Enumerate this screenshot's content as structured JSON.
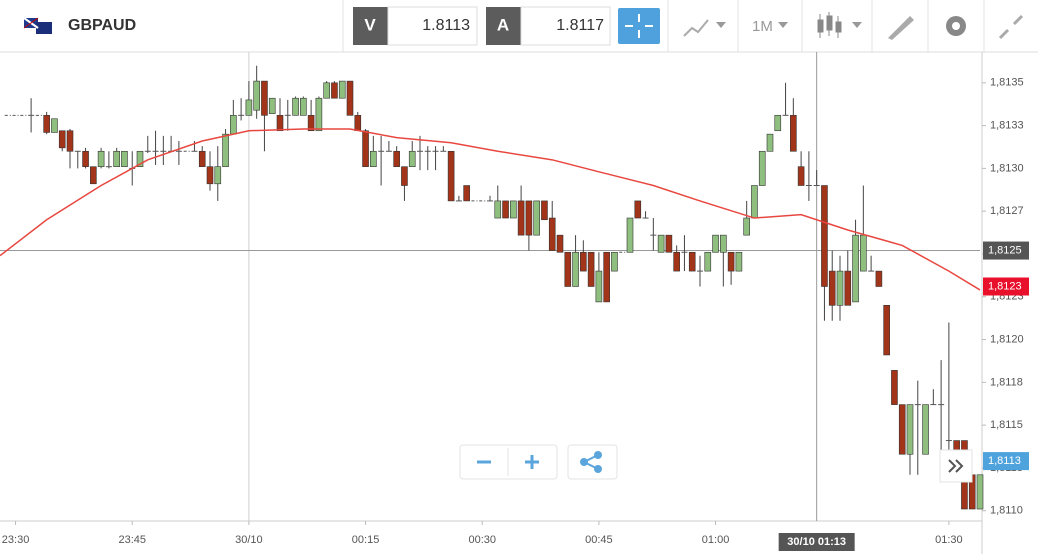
{
  "toolbar": {
    "symbol": "GBPAUD",
    "bid_label": "V",
    "bid": 1.8113,
    "ask_label": "A",
    "ask": 1.8117,
    "timeframe": "1M"
  },
  "chart_data": {
    "type": "candlestick",
    "xlim": [
      "23:28",
      "01:34"
    ],
    "xticks": [
      "23:30",
      "23:45",
      {
        "value": "00:00",
        "label": "30/10"
      },
      "00:15",
      "00:30",
      "00:45",
      "01:00",
      "01:30"
    ],
    "ylim": [
      1.81094,
      1.81368
    ],
    "yticks": [
      {
        "value": 1.8135,
        "label": "1,8135"
      },
      {
        "value": 1.81325,
        "label": "1,8133"
      },
      {
        "value": 1.813,
        "label": "1,8130"
      },
      {
        "value": 1.81275,
        "label": "1,8127"
      },
      {
        "value": 1.8125,
        "label": "1,8125"
      },
      {
        "value": 1.81225,
        "label": "1,8123"
      },
      {
        "value": 1.812,
        "label": "1,8120"
      },
      {
        "value": 1.81175,
        "label": "1,8118"
      },
      {
        "value": 1.8115,
        "label": "1,8115"
      },
      {
        "value": 1.81125,
        "label": "1,8113"
      },
      {
        "value": 1.811,
        "label": "1,8110"
      }
    ],
    "up_color": "#8fbf7f",
    "down_color": "#a23419",
    "candles": [
      [
        "23:29",
        1.81331,
        1.81331,
        1.81331,
        1.81331
      ],
      [
        "23:30",
        1.81331,
        1.81331,
        1.81331,
        1.81331
      ],
      [
        "23:31",
        1.81331,
        1.81331,
        1.81331,
        1.81331
      ],
      [
        "23:32",
        1.81331,
        1.81341,
        1.81321,
        1.81331
      ],
      [
        "23:33",
        1.81331,
        1.81331,
        1.81331,
        1.81331
      ],
      [
        "23:34",
        1.81331,
        1.81333,
        1.8132,
        1.81321
      ],
      [
        "23:35",
        1.81321,
        1.81329,
        1.81321,
        1.81329
      ],
      [
        "23:36",
        1.81322,
        1.81322,
        1.8131,
        1.81312
      ],
      [
        "23:37",
        1.81322,
        1.81323,
        1.813,
        1.8131
      ],
      [
        "23:38",
        1.8131,
        1.8131,
        1.813,
        1.8131
      ],
      [
        "23:39",
        1.8131,
        1.81312,
        1.813,
        1.81301
      ],
      [
        "23:40",
        1.81301,
        1.81301,
        1.81291,
        1.81291
      ],
      [
        "23:41",
        1.81301,
        1.81312,
        1.813,
        1.8131
      ],
      [
        "23:42",
        1.81301,
        1.8131,
        1.813,
        1.81301
      ],
      [
        "23:43",
        1.81301,
        1.81312,
        1.81301,
        1.8131
      ],
      [
        "23:44",
        1.81301,
        1.8131,
        1.81301,
        1.8131
      ],
      [
        "23:45",
        1.813,
        1.8131,
        1.8129,
        1.813
      ],
      [
        "23:46",
        1.81301,
        1.8131,
        1.81301,
        1.8131
      ],
      [
        "23:47",
        1.8131,
        1.81319,
        1.81309,
        1.8131
      ],
      [
        "23:48",
        1.8131,
        1.81322,
        1.81302,
        1.8131
      ],
      [
        "23:49",
        1.8131,
        1.81319,
        1.81302,
        1.8131
      ],
      [
        "23:50",
        1.8131,
        1.81319,
        1.8131,
        1.8131
      ],
      [
        "23:51",
        1.8131,
        1.81316,
        1.81302,
        1.8131
      ],
      [
        "23:52",
        1.8131,
        1.8131,
        1.8131,
        1.8131
      ],
      [
        "23:53",
        1.8131,
        1.81316,
        1.8131,
        1.8131
      ],
      [
        "23:54",
        1.8131,
        1.81313,
        1.81301,
        1.81301
      ],
      [
        "23:55",
        1.81301,
        1.8131,
        1.81287,
        1.81291
      ],
      [
        "23:56",
        1.81291,
        1.81313,
        1.81281,
        1.81301
      ],
      [
        "23:57",
        1.81301,
        1.81323,
        1.81301,
        1.8132
      ],
      [
        "23:58",
        1.8132,
        1.8134,
        1.8132,
        1.81331
      ],
      [
        "23:59",
        1.81331,
        1.81341,
        1.81328,
        1.81331
      ],
      [
        "00:00",
        1.81331,
        1.81351,
        1.81331,
        1.8134
      ],
      [
        "00:01",
        1.81334,
        1.8136,
        1.81329,
        1.81351
      ],
      [
        "00:02",
        1.81351,
        1.81351,
        1.8131,
        1.81331
      ],
      [
        "00:03",
        1.81332,
        1.81341,
        1.81332,
        1.81341
      ],
      [
        "00:04",
        1.81331,
        1.81341,
        1.81322,
        1.81322
      ],
      [
        "00:05",
        1.81331,
        1.8134,
        1.81322,
        1.81331
      ],
      [
        "00:06",
        1.81331,
        1.81342,
        1.81331,
        1.81341
      ],
      [
        "00:07",
        1.81331,
        1.81342,
        1.81331,
        1.81341
      ],
      [
        "00:08",
        1.81331,
        1.8134,
        1.81322,
        1.81322
      ],
      [
        "00:09",
        1.81322,
        1.81342,
        1.81322,
        1.81341
      ],
      [
        "00:10",
        1.81341,
        1.81351,
        1.81341,
        1.8135
      ],
      [
        "00:11",
        1.8135,
        1.81351,
        1.81341,
        1.81341
      ],
      [
        "00:12",
        1.81341,
        1.81351,
        1.81341,
        1.81351
      ],
      [
        "00:13",
        1.81351,
        1.81351,
        1.81331,
        1.81331
      ],
      [
        "00:14",
        1.81331,
        1.81333,
        1.81322,
        1.81322
      ],
      [
        "00:15",
        1.81322,
        1.81323,
        1.81301,
        1.81301
      ],
      [
        "00:16",
        1.81301,
        1.81319,
        1.81301,
        1.8131
      ],
      [
        "00:17",
        1.8131,
        1.81319,
        1.8129,
        1.8131
      ],
      [
        "00:18",
        1.8131,
        1.81316,
        1.8131,
        1.8131
      ],
      [
        "00:19",
        1.8131,
        1.81313,
        1.81301,
        1.81301
      ],
      [
        "00:20",
        1.81301,
        1.81301,
        1.81281,
        1.8129
      ],
      [
        "00:21",
        1.81301,
        1.81316,
        1.81301,
        1.8131
      ],
      [
        "00:22",
        1.8131,
        1.81319,
        1.81299,
        1.8131
      ],
      [
        "00:23",
        1.8131,
        1.81313,
        1.81299,
        1.8131
      ],
      [
        "00:24",
        1.8131,
        1.81313,
        1.81299,
        1.8131
      ],
      [
        "00:25",
        1.8131,
        1.81313,
        1.8131,
        1.8131
      ],
      [
        "00:26",
        1.8131,
        1.8131,
        1.81281,
        1.81281
      ],
      [
        "00:27",
        1.81281,
        1.81284,
        1.81281,
        1.81281
      ],
      [
        "00:28",
        1.8129,
        1.8129,
        1.81281,
        1.81281
      ],
      [
        "00:29",
        1.81281,
        1.81281,
        1.81281,
        1.81281
      ],
      [
        "00:30",
        1.81281,
        1.81281,
        1.81281,
        1.81281
      ],
      [
        "00:31",
        1.81281,
        1.81284,
        1.81281,
        1.81281
      ],
      [
        "00:32",
        1.81271,
        1.8129,
        1.81271,
        1.81281
      ],
      [
        "00:33",
        1.81281,
        1.81281,
        1.81271,
        1.81271
      ],
      [
        "00:34",
        1.81271,
        1.81281,
        1.81271,
        1.81281
      ],
      [
        "00:35",
        1.81281,
        1.8129,
        1.81261,
        1.81261
      ],
      [
        "00:36",
        1.81281,
        1.81281,
        1.81252,
        1.81261
      ],
      [
        "00:37",
        1.81261,
        1.81281,
        1.81261,
        1.81281
      ],
      [
        "00:38",
        1.81281,
        1.81281,
        1.8127,
        1.8127
      ],
      [
        "00:39",
        1.81271,
        1.81281,
        1.81252,
        1.81252
      ],
      [
        "00:40",
        1.81261,
        1.81261,
        1.81251,
        1.81251
      ],
      [
        "00:41",
        1.81251,
        1.81251,
        1.81231,
        1.81231
      ],
      [
        "00:42",
        1.81231,
        1.81261,
        1.81231,
        1.81251
      ],
      [
        "00:43",
        1.81251,
        1.81258,
        1.8124,
        1.8124
      ],
      [
        "00:44",
        1.81251,
        1.81251,
        1.81231,
        1.81231
      ],
      [
        "00:45",
        1.81222,
        1.81251,
        1.81222,
        1.8124
      ],
      [
        "00:46",
        1.81251,
        1.81251,
        1.81222,
        1.81222
      ],
      [
        "00:47",
        1.8124,
        1.81251,
        1.8124,
        1.81251
      ],
      [
        "00:48",
        1.81251,
        1.81251,
        1.81251,
        1.81251
      ],
      [
        "00:49",
        1.81251,
        1.81271,
        1.81251,
        1.81271
      ],
      [
        "00:50",
        1.81281,
        1.81281,
        1.81271,
        1.81271
      ],
      [
        "00:51",
        1.81271,
        1.81275,
        1.81271,
        1.81271
      ],
      [
        "00:52",
        1.81261,
        1.81271,
        1.81252,
        1.81261
      ],
      [
        "00:53",
        1.81251,
        1.81261,
        1.81251,
        1.81261
      ],
      [
        "00:54",
        1.81261,
        1.81261,
        1.81251,
        1.81251
      ],
      [
        "00:55",
        1.81251,
        1.81255,
        1.8124,
        1.8124
      ],
      [
        "00:56",
        1.81251,
        1.81261,
        1.8124,
        1.81251
      ],
      [
        "00:57",
        1.81251,
        1.81251,
        1.8124,
        1.8124
      ],
      [
        "00:58",
        1.8124,
        1.81249,
        1.81231,
        1.8124
      ],
      [
        "00:59",
        1.8124,
        1.81251,
        1.8124,
        1.81251
      ],
      [
        "01:00",
        1.81251,
        1.81261,
        1.81251,
        1.81261
      ],
      [
        "01:01",
        1.81251,
        1.81261,
        1.81231,
        1.81261
      ],
      [
        "01:02",
        1.81251,
        1.81251,
        1.81232,
        1.8124
      ],
      [
        "01:03",
        1.8124,
        1.81251,
        1.8124,
        1.81251
      ],
      [
        "01:04",
        1.81261,
        1.81281,
        1.81261,
        1.81271
      ],
      [
        "01:05",
        1.81271,
        1.8129,
        1.81271,
        1.8129
      ],
      [
        "01:06",
        1.8129,
        1.8131,
        1.8129,
        1.8131
      ],
      [
        "01:07",
        1.8131,
        1.8132,
        1.8131,
        1.8132
      ],
      [
        "01:08",
        1.81322,
        1.81331,
        1.81322,
        1.81331
      ],
      [
        "01:09",
        1.81331,
        1.8135,
        1.81331,
        1.81331
      ],
      [
        "01:10",
        1.81331,
        1.81341,
        1.8131,
        1.8131
      ],
      [
        "01:11",
        1.81301,
        1.8131,
        1.8129,
        1.8129
      ],
      [
        "01:12",
        1.8129,
        1.8131,
        1.81281,
        1.8129
      ],
      [
        "01:13",
        1.8129,
        1.81299,
        1.8129,
        1.8129
      ],
      [
        "01:14",
        1.8129,
        1.8129,
        1.81211,
        1.81231
      ],
      [
        "01:15",
        1.8124,
        1.81252,
        1.81211,
        1.8122
      ],
      [
        "01:16",
        1.8122,
        1.81249,
        1.81211,
        1.8124
      ],
      [
        "01:17",
        1.8124,
        1.81252,
        1.8122,
        1.8122
      ],
      [
        "01:18",
        1.81222,
        1.8127,
        1.81222,
        1.81261
      ],
      [
        "01:19",
        1.8124,
        1.8129,
        1.8124,
        1.81261
      ],
      [
        "01:20",
        1.8124,
        1.81249,
        1.8124,
        1.8124
      ],
      [
        "01:21",
        1.8124,
        1.8124,
        1.81231,
        1.81231
      ],
      [
        "01:22",
        1.8122,
        1.8122,
        1.81191,
        1.81191
      ],
      [
        "01:23",
        1.81182,
        1.81182,
        1.81162,
        1.81162
      ],
      [
        "01:24",
        1.81162,
        1.81162,
        1.81133,
        1.81133
      ],
      [
        "01:25",
        1.81133,
        1.81162,
        1.81121,
        1.81162
      ],
      [
        "01:26",
        1.81162,
        1.81176,
        1.81121,
        1.81162
      ],
      [
        "01:27",
        1.81133,
        1.81162,
        1.81133,
        1.81162
      ],
      [
        "01:28",
        1.81162,
        1.81171,
        1.81162,
        1.81162
      ],
      [
        "01:29",
        1.81162,
        1.81188,
        1.81121,
        1.81162
      ],
      [
        "01:30",
        1.81141,
        1.8121,
        1.81133,
        1.81141
      ],
      [
        "01:31",
        1.81141,
        1.81141,
        1.81133,
        1.81133
      ],
      [
        "01:32",
        1.81141,
        1.81141,
        1.81101,
        1.81101
      ],
      [
        "01:33",
        1.81121,
        1.81121,
        1.81101,
        1.81101
      ],
      [
        "01:34",
        1.81101,
        1.81121,
        1.81101,
        1.81121
      ]
    ],
    "ma": {
      "color": "#e8473f",
      "x": [
        "23:28",
        "23:34",
        "23:41",
        "23:47",
        "23:54",
        "00:00",
        "00:07",
        "00:13",
        "00:19",
        "00:26",
        "00:32",
        "00:39",
        "00:45",
        "00:52",
        "00:58",
        "01:05",
        "01:11",
        "01:17",
        "01:24",
        "01:30",
        "01:34"
      ],
      "values": [
        1.81249,
        1.8127,
        1.8129,
        1.81305,
        1.81316,
        1.81322,
        1.81323,
        1.81323,
        1.81318,
        1.81315,
        1.8131,
        1.81305,
        1.81298,
        1.8129,
        1.81281,
        1.81271,
        1.81273,
        1.81264,
        1.81255,
        1.8124,
        1.81229
      ]
    },
    "crosshair": {
      "x": {
        "value": "01:13",
        "label": "30/10 01:13"
      },
      "y": {
        "value": 1.81252,
        "label": "1,8125"
      }
    },
    "price_labels": [
      {
        "value": 1.81231,
        "label": "1,8123",
        "color": "#e8102a"
      },
      {
        "value": 1.81129,
        "label": "1,8113",
        "color": "#4fa3dd"
      }
    ]
  }
}
